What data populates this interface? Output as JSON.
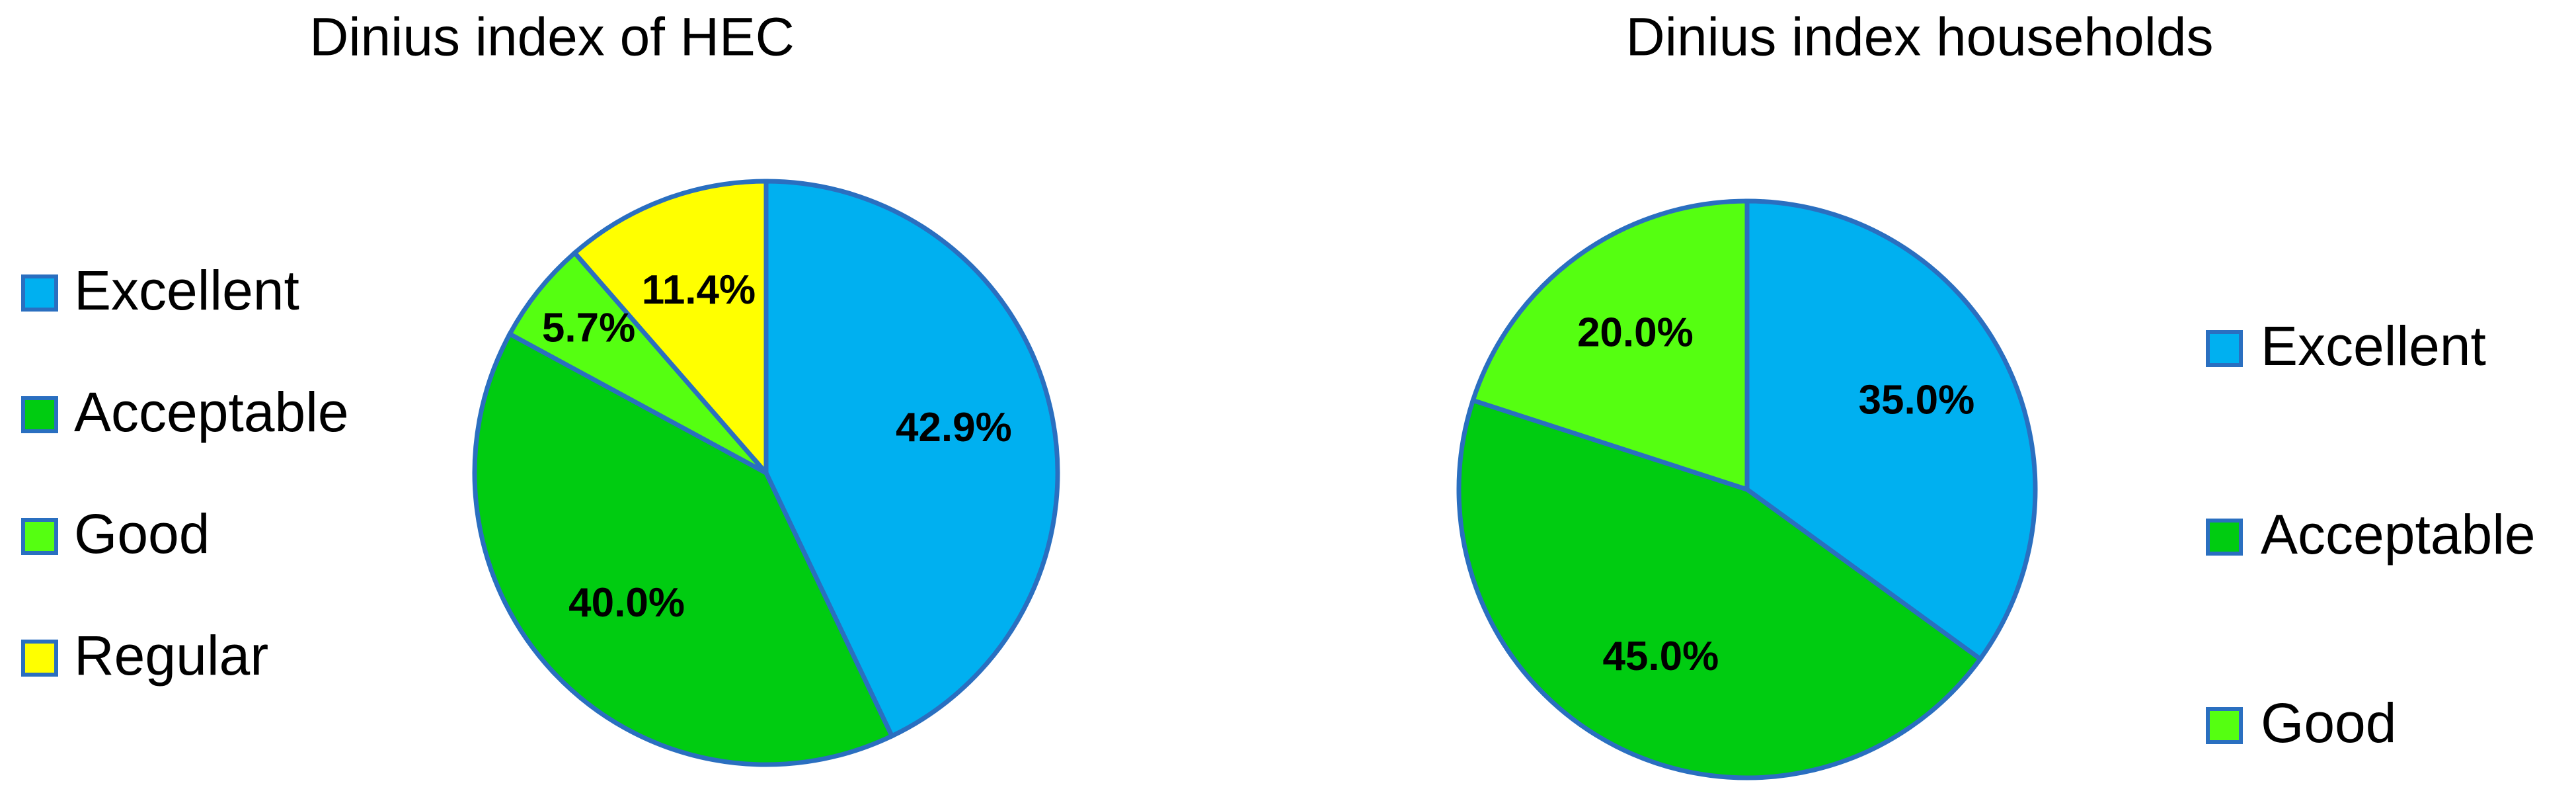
{
  "chart_data": [
    {
      "type": "pie",
      "title": "Dinius index of HEC",
      "categories": [
        "Excellent",
        "Acceptable",
        "Good",
        "Regular"
      ],
      "values": [
        42.9,
        40.0,
        5.7,
        11.4
      ],
      "value_labels": [
        "42.9%",
        "40.0%",
        "5.7%",
        "11.4%"
      ],
      "colors": [
        "#00b0f0",
        "#00cc11",
        "#55ff11",
        "#ffff00"
      ],
      "legend": "left"
    },
    {
      "type": "pie",
      "title": "Dinius index households",
      "categories": [
        "Excellent",
        "Acceptable",
        "Good"
      ],
      "values": [
        35.0,
        45.0,
        20.0
      ],
      "value_labels": [
        "35.0%",
        "45.0%",
        "20.0%"
      ],
      "colors": [
        "#00b0f0",
        "#00cc11",
        "#55ff11"
      ],
      "legend": "right"
    }
  ]
}
